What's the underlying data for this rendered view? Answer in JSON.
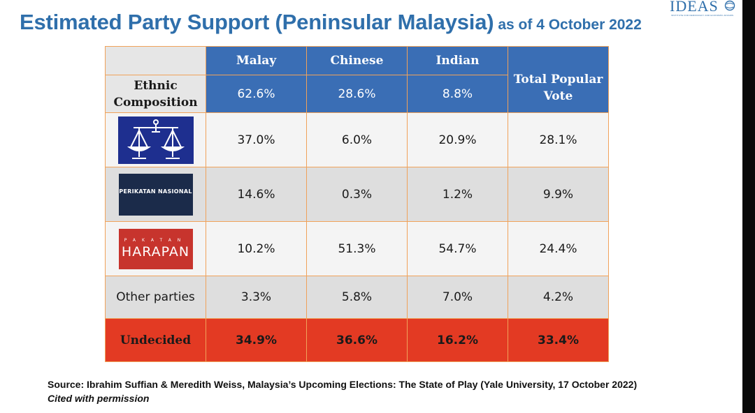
{
  "title": {
    "main": "Estimated Party Support (Peninsular Malaysia)",
    "sub": "as of 4 October 2022"
  },
  "logo": {
    "word": "IDEAS",
    "tagline": "INSTITUTE FOR DEMOCRACY AND ECONOMIC AFFAIRS"
  },
  "table": {
    "headers": [
      "Malay",
      "Chinese",
      "Indian",
      "Total Popular Vote"
    ],
    "ethnic": {
      "label": "Ethnic Composition",
      "values": [
        "62.6%",
        "28.6%",
        "8.8%"
      ]
    },
    "rows": [
      {
        "party_icon": "barisan-nasional-scales-icon",
        "values": [
          "37.0%",
          "6.0%",
          "20.9%",
          "28.1%"
        ]
      },
      {
        "party_logo_text": "PERIKATAN NASIONAL",
        "values": [
          "14.6%",
          "0.3%",
          "1.2%",
          "9.9%"
        ]
      },
      {
        "party_logo_small": "PAKATAN",
        "party_logo_big": "HARAPAN",
        "values": [
          "10.2%",
          "51.3%",
          "54.7%",
          "24.4%"
        ]
      },
      {
        "label": "Other parties",
        "values": [
          "3.3%",
          "5.8%",
          "7.0%",
          "4.2%"
        ]
      },
      {
        "label": "Undecided",
        "values": [
          "34.9%",
          "36.6%",
          "16.2%",
          "33.4%"
        ]
      }
    ]
  },
  "source": "Source: Ibrahim Suffian & Meredith Weiss, Malaysia’s Upcoming Elections: The State of Play (Yale University, 17 October 2022)",
  "cited": "Cited with permission",
  "colors": {
    "title": "#2f6fab",
    "header_blue": "#3a6eb5",
    "undecided_red": "#e33a23",
    "border_orange": "#f0a25a"
  }
}
